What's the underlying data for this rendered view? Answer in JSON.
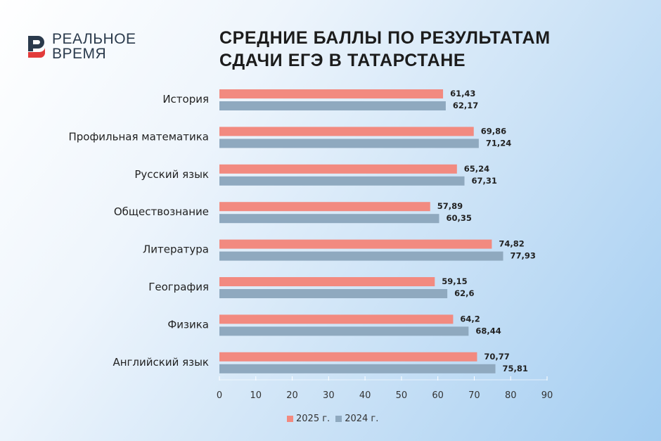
{
  "logo": {
    "line1": "РЕАЛЬНОЕ",
    "line2": "ВРЕМЯ"
  },
  "title": {
    "line1": "СРЕДНИЕ БАЛЛЫ ПО РЕЗУЛЬТАТАМ",
    "line2": "СДАЧИ ЕГЭ В ТАТАРСТАНЕ"
  },
  "chart_data": {
    "type": "bar",
    "orientation": "horizontal",
    "title": "СРЕДНИЕ БАЛЛЫ ПО РЕЗУЛЬТАТАМ СДАЧИ ЕГЭ В ТАТАРСТАНЕ",
    "categories": [
      "История",
      "Профильная математика",
      "Русский язык",
      "Обществознание",
      "Литература",
      "География",
      "Физика",
      "Английский язык"
    ],
    "series": [
      {
        "name": "2025 г.",
        "color": "#f28a80",
        "values": [
          61.43,
          69.86,
          65.24,
          57.89,
          74.82,
          59.15,
          64.2,
          70.77
        ],
        "labels": [
          "61,43",
          "69,86",
          "65,24",
          "57,89",
          "74,82",
          "59,15",
          "64,2",
          "70,77"
        ]
      },
      {
        "name": "2024 г.",
        "color": "#8fa9bf",
        "values": [
          62.17,
          71.24,
          67.31,
          60.35,
          77.93,
          62.6,
          68.44,
          75.81
        ],
        "labels": [
          "62,17",
          "71,24",
          "67,31",
          "60,35",
          "77,93",
          "62,6",
          "68,44",
          "75,81"
        ]
      }
    ],
    "xlim": [
      0,
      90
    ],
    "xticks": [
      "0",
      "10",
      "20",
      "30",
      "40",
      "50",
      "60",
      "70",
      "80",
      "90"
    ],
    "grid": false,
    "legend": "bottom"
  }
}
